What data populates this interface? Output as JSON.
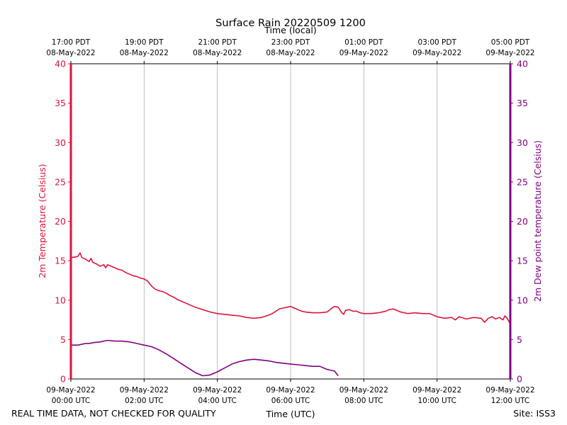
{
  "chart_data": {
    "type": "line",
    "title": "Surface Rain 20220509 1200",
    "top_axis_label": "Time (local)",
    "xlabel": "Time (UTC)",
    "ylabel_left": "2m Temperature (Celsius)",
    "ylabel_right": "2m Dew point temperature (Celsius)",
    "footer_left": "REAL TIME DATA, NOT CHECKED FOR QUALITY",
    "footer_right": "Site: ISS3",
    "xlim_hours": [
      0,
      12
    ],
    "ylim": [
      0,
      40
    ],
    "y_ticks": [
      "0",
      "5",
      "10",
      "15",
      "20",
      "25",
      "30",
      "35",
      "40"
    ],
    "grid": true,
    "x_ticks_utc": [
      {
        "hour": 0,
        "line1": "09-May-2022",
        "line2": "00:00 UTC"
      },
      {
        "hour": 2,
        "line1": "09-May-2022",
        "line2": "02:00 UTC"
      },
      {
        "hour": 4,
        "line1": "09-May-2022",
        "line2": "04:00 UTC"
      },
      {
        "hour": 6,
        "line1": "09-May-2022",
        "line2": "06:00 UTC"
      },
      {
        "hour": 8,
        "line1": "09-May-2022",
        "line2": "08:00 UTC"
      },
      {
        "hour": 10,
        "line1": "09-May-2022",
        "line2": "10:00 UTC"
      },
      {
        "hour": 12,
        "line1": "09-May-2022",
        "line2": "12:00 UTC"
      }
    ],
    "x_ticks_local": [
      {
        "hour": 0,
        "line1": "17:00 PDT",
        "line2": "08-May-2022"
      },
      {
        "hour": 2,
        "line1": "19:00 PDT",
        "line2": "08-May-2022"
      },
      {
        "hour": 4,
        "line1": "21:00 PDT",
        "line2": "08-May-2022"
      },
      {
        "hour": 6,
        "line1": "23:00 PDT",
        "line2": "08-May-2022"
      },
      {
        "hour": 8,
        "line1": "01:00 PDT",
        "line2": "09-May-2022"
      },
      {
        "hour": 10,
        "line1": "03:00 PDT",
        "line2": "09-May-2022"
      },
      {
        "hour": 12,
        "line1": "05:00 PDT",
        "line2": "09-May-2022"
      }
    ],
    "series": [
      {
        "name": "2m Temperature (Celsius)",
        "axis": "left",
        "color": "#dc143c",
        "x": [
          0,
          0.15,
          0.2,
          0.25,
          0.3,
          0.4,
          0.5,
          0.55,
          0.6,
          0.7,
          0.8,
          0.9,
          0.95,
          1.0,
          1.1,
          1.2,
          1.3,
          1.4,
          1.5,
          1.6,
          1.7,
          1.8,
          1.9,
          2.0,
          2.1,
          2.2,
          2.3,
          2.4,
          2.5,
          2.6,
          2.7,
          2.8,
          2.9,
          3.0,
          3.2,
          3.4,
          3.6,
          3.8,
          4.0,
          4.2,
          4.4,
          4.6,
          4.8,
          5.0,
          5.2,
          5.4,
          5.5,
          5.6,
          5.7,
          5.8,
          5.9,
          6.0,
          6.1,
          6.2,
          6.3,
          6.4,
          6.6,
          6.8,
          7.0,
          7.1,
          7.2,
          7.3,
          7.4,
          7.45,
          7.5,
          7.6,
          7.7,
          7.8,
          7.9,
          8.0,
          8.2,
          8.4,
          8.6,
          8.7,
          8.8,
          9.0,
          9.2,
          9.4,
          9.6,
          9.8,
          10.0,
          10.2,
          10.4,
          10.5,
          10.6,
          10.8,
          11.0,
          11.2,
          11.3,
          11.4,
          11.5,
          11.6,
          11.7,
          11.8,
          11.85,
          11.9,
          12.0
        ],
        "values": [
          15.4,
          15.5,
          15.6,
          16.0,
          15.4,
          15.2,
          14.9,
          15.3,
          14.8,
          14.6,
          14.3,
          14.5,
          14.1,
          14.5,
          14.3,
          14.1,
          13.9,
          13.8,
          13.5,
          13.3,
          13.1,
          13.0,
          12.8,
          12.7,
          12.4,
          11.8,
          11.4,
          11.2,
          11.1,
          10.9,
          10.6,
          10.4,
          10.1,
          9.9,
          9.5,
          9.1,
          8.8,
          8.5,
          8.3,
          8.2,
          8.1,
          8.0,
          7.8,
          7.7,
          7.8,
          8.1,
          8.3,
          8.6,
          8.9,
          9.0,
          9.1,
          9.2,
          9.0,
          8.8,
          8.6,
          8.5,
          8.4,
          8.4,
          8.5,
          8.9,
          9.2,
          9.1,
          8.4,
          8.2,
          8.7,
          8.8,
          8.6,
          8.6,
          8.4,
          8.3,
          8.3,
          8.4,
          8.6,
          8.8,
          8.9,
          8.5,
          8.3,
          8.4,
          8.3,
          8.3,
          7.9,
          7.7,
          7.8,
          7.5,
          7.9,
          7.6,
          7.8,
          7.7,
          7.2,
          7.7,
          7.9,
          7.6,
          7.8,
          7.5,
          8.0,
          7.8,
          7.0
        ]
      },
      {
        "name": "2m Dew point temperature (Celsius)",
        "axis": "right",
        "color": "#800080",
        "x": [
          0,
          0.2,
          0.4,
          0.5,
          0.6,
          0.8,
          1.0,
          1.2,
          1.4,
          1.6,
          1.8,
          2.0,
          2.2,
          2.4,
          2.6,
          2.8,
          3.0,
          3.2,
          3.4,
          3.6,
          3.8,
          4.0,
          4.2,
          4.4,
          4.6,
          4.8,
          5.0,
          5.2,
          5.4,
          5.6,
          5.8,
          6.0,
          6.2,
          6.4,
          6.6,
          6.8,
          7.0,
          7.2,
          7.3
        ],
        "values": [
          4.3,
          4.3,
          4.5,
          4.5,
          4.6,
          4.7,
          4.9,
          4.8,
          4.8,
          4.7,
          4.5,
          4.3,
          4.1,
          3.7,
          3.2,
          2.6,
          2.0,
          1.4,
          0.8,
          0.4,
          0.5,
          0.9,
          1.4,
          1.9,
          2.2,
          2.4,
          2.5,
          2.4,
          2.3,
          2.1,
          2.0,
          1.9,
          1.8,
          1.7,
          1.6,
          1.6,
          1.2,
          1.0,
          0.4
        ]
      }
    ]
  }
}
